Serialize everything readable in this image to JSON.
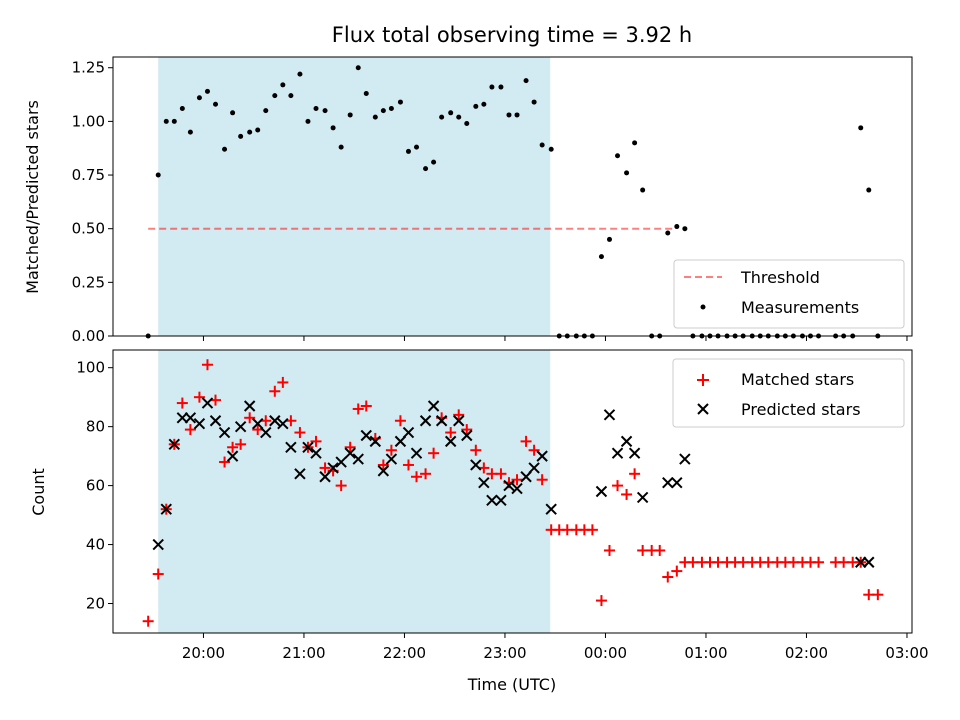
{
  "chart_data": [
    {
      "type": "scatter",
      "title": "Flux total observing time = 3.92 h",
      "xlabel": "",
      "ylabel": "Matched/Predicted stars",
      "ylim": [
        0,
        1.3
      ],
      "y_ticks": [
        "0.00",
        "0.25",
        "0.50",
        "0.75",
        "1.00",
        "1.25"
      ],
      "x_ticklabels_shown": false,
      "legend_position": "lower-right",
      "shaded_interval": {
        "start": 19.55,
        "end": 23.45,
        "color": "#add8e6"
      },
      "threshold": {
        "name": "Threshold",
        "value": 0.5,
        "x_range": [
          19.45,
          24.7
        ],
        "color": "#ff0000",
        "style": "dashed"
      },
      "series": [
        {
          "name": "Measurements",
          "marker": "dot",
          "color": "#000000",
          "points": [
            [
              19.45,
              0.0
            ],
            [
              19.55,
              0.75
            ],
            [
              19.63,
              1.0
            ],
            [
              19.71,
              1.0
            ],
            [
              19.79,
              1.06
            ],
            [
              19.87,
              0.95
            ],
            [
              19.96,
              1.11
            ],
            [
              20.04,
              1.14
            ],
            [
              20.12,
              1.08
            ],
            [
              20.21,
              0.87
            ],
            [
              20.29,
              1.04
            ],
            [
              20.37,
              0.93
            ],
            [
              20.46,
              0.95
            ],
            [
              20.54,
              0.96
            ],
            [
              20.62,
              1.05
            ],
            [
              20.71,
              1.12
            ],
            [
              20.79,
              1.17
            ],
            [
              20.87,
              1.12
            ],
            [
              20.96,
              1.22
            ],
            [
              21.04,
              1.0
            ],
            [
              21.12,
              1.06
            ],
            [
              21.21,
              1.05
            ],
            [
              21.29,
              0.97
            ],
            [
              21.37,
              0.88
            ],
            [
              21.46,
              1.03
            ],
            [
              21.54,
              1.25
            ],
            [
              21.62,
              1.13
            ],
            [
              21.71,
              1.02
            ],
            [
              21.79,
              1.05
            ],
            [
              21.87,
              1.06
            ],
            [
              21.96,
              1.09
            ],
            [
              22.04,
              0.86
            ],
            [
              22.12,
              0.88
            ],
            [
              22.21,
              0.78
            ],
            [
              22.29,
              0.81
            ],
            [
              22.37,
              1.02
            ],
            [
              22.46,
              1.04
            ],
            [
              22.54,
              1.02
            ],
            [
              22.62,
              0.99
            ],
            [
              22.71,
              1.07
            ],
            [
              22.79,
              1.08
            ],
            [
              22.87,
              1.16
            ],
            [
              22.96,
              1.16
            ],
            [
              23.04,
              1.03
            ],
            [
              23.12,
              1.03
            ],
            [
              23.21,
              1.19
            ],
            [
              23.29,
              1.09
            ],
            [
              23.37,
              0.89
            ],
            [
              23.46,
              0.87
            ],
            [
              23.54,
              0.0
            ],
            [
              23.62,
              0.0
            ],
            [
              23.71,
              0.0
            ],
            [
              23.79,
              0.0
            ],
            [
              23.87,
              0.0
            ],
            [
              23.96,
              0.37
            ],
            [
              24.04,
              0.45
            ],
            [
              24.12,
              0.84
            ],
            [
              24.21,
              0.76
            ],
            [
              24.29,
              0.9
            ],
            [
              24.37,
              0.68
            ],
            [
              24.46,
              0.0
            ],
            [
              24.54,
              0.0
            ],
            [
              24.62,
              0.48
            ],
            [
              24.71,
              0.51
            ],
            [
              24.79,
              0.5
            ],
            [
              24.87,
              0.0
            ],
            [
              24.96,
              0.0
            ],
            [
              25.04,
              0.0
            ],
            [
              25.12,
              0.0
            ],
            [
              25.21,
              0.0
            ],
            [
              25.29,
              0.0
            ],
            [
              25.37,
              0.0
            ],
            [
              25.46,
              0.0
            ],
            [
              25.54,
              0.0
            ],
            [
              25.62,
              0.0
            ],
            [
              25.71,
              0.0
            ],
            [
              25.79,
              0.0
            ],
            [
              25.87,
              0.0
            ],
            [
              25.96,
              0.0
            ],
            [
              26.04,
              0.0
            ],
            [
              26.12,
              0.0
            ],
            [
              26.29,
              0.0
            ],
            [
              26.37,
              0.0
            ],
            [
              26.46,
              0.0
            ],
            [
              26.54,
              0.97
            ],
            [
              26.62,
              0.68
            ],
            [
              26.71,
              0.0
            ]
          ]
        }
      ]
    },
    {
      "type": "scatter",
      "title": "",
      "xlabel": "Time (UTC)",
      "ylabel": "Count",
      "ylim": [
        10,
        106
      ],
      "xlim": [
        19.1,
        27.05
      ],
      "x_ticks": [
        {
          "value": 20,
          "label": "20:00"
        },
        {
          "value": 21,
          "label": "21:00"
        },
        {
          "value": 22,
          "label": "22:00"
        },
        {
          "value": 23,
          "label": "23:00"
        },
        {
          "value": 24,
          "label": "00:00"
        },
        {
          "value": 25,
          "label": "01:00"
        },
        {
          "value": 26,
          "label": "02:00"
        },
        {
          "value": 27,
          "label": "03:00"
        }
      ],
      "y_ticks": [
        "20",
        "40",
        "60",
        "80",
        "100"
      ],
      "legend_position": "upper-right",
      "shaded_interval": {
        "start": 19.55,
        "end": 23.45,
        "color": "#add8e6"
      },
      "series": [
        {
          "name": "Matched stars",
          "marker": "plus",
          "color": "#ff0000",
          "points": [
            [
              19.45,
              14
            ],
            [
              19.55,
              30
            ],
            [
              19.63,
              52
            ],
            [
              19.71,
              74
            ],
            [
              19.79,
              88
            ],
            [
              19.87,
              79
            ],
            [
              19.96,
              90
            ],
            [
              20.04,
              101
            ],
            [
              20.12,
              89
            ],
            [
              20.21,
              68
            ],
            [
              20.29,
              73
            ],
            [
              20.37,
              74
            ],
            [
              20.46,
              83
            ],
            [
              20.54,
              79
            ],
            [
              20.62,
              82
            ],
            [
              20.71,
              92
            ],
            [
              20.79,
              95
            ],
            [
              20.87,
              82
            ],
            [
              20.96,
              78
            ],
            [
              21.04,
              73
            ],
            [
              21.12,
              75
            ],
            [
              21.21,
              66
            ],
            [
              21.29,
              65
            ],
            [
              21.37,
              60
            ],
            [
              21.46,
              73
            ],
            [
              21.54,
              86
            ],
            [
              21.62,
              87
            ],
            [
              21.71,
              76
            ],
            [
              21.79,
              67
            ],
            [
              21.87,
              72
            ],
            [
              21.96,
              82
            ],
            [
              22.04,
              67
            ],
            [
              22.12,
              63
            ],
            [
              22.21,
              64
            ],
            [
              22.29,
              71
            ],
            [
              22.37,
              83
            ],
            [
              22.46,
              78
            ],
            [
              22.54,
              84
            ],
            [
              22.62,
              79
            ],
            [
              22.71,
              72
            ],
            [
              22.79,
              66
            ],
            [
              22.87,
              64
            ],
            [
              22.96,
              64
            ],
            [
              23.04,
              61
            ],
            [
              23.12,
              62
            ],
            [
              23.21,
              75
            ],
            [
              23.29,
              72
            ],
            [
              23.37,
              62
            ],
            [
              23.46,
              45
            ],
            [
              23.54,
              45
            ],
            [
              23.62,
              45
            ],
            [
              23.71,
              45
            ],
            [
              23.79,
              45
            ],
            [
              23.87,
              45
            ],
            [
              23.96,
              21
            ],
            [
              24.04,
              38
            ],
            [
              24.12,
              60
            ],
            [
              24.21,
              57
            ],
            [
              24.29,
              64
            ],
            [
              24.37,
              38
            ],
            [
              24.46,
              38
            ],
            [
              24.54,
              38
            ],
            [
              24.62,
              29
            ],
            [
              24.71,
              31
            ],
            [
              24.79,
              34
            ],
            [
              24.87,
              34
            ],
            [
              24.96,
              34
            ],
            [
              25.04,
              34
            ],
            [
              25.12,
              34
            ],
            [
              25.21,
              34
            ],
            [
              25.29,
              34
            ],
            [
              25.37,
              34
            ],
            [
              25.46,
              34
            ],
            [
              25.54,
              34
            ],
            [
              25.62,
              34
            ],
            [
              25.71,
              34
            ],
            [
              25.79,
              34
            ],
            [
              25.87,
              34
            ],
            [
              25.96,
              34
            ],
            [
              26.04,
              34
            ],
            [
              26.12,
              34
            ],
            [
              26.29,
              34
            ],
            [
              26.37,
              34
            ],
            [
              26.46,
              34
            ],
            [
              26.54,
              34
            ],
            [
              26.62,
              23
            ],
            [
              26.71,
              23
            ]
          ]
        },
        {
          "name": "Predicted stars",
          "marker": "x",
          "color": "#000000",
          "points": [
            [
              19.55,
              40
            ],
            [
              19.63,
              52
            ],
            [
              19.71,
              74
            ],
            [
              19.79,
              83
            ],
            [
              19.87,
              83
            ],
            [
              19.96,
              81
            ],
            [
              20.04,
              88
            ],
            [
              20.12,
              82
            ],
            [
              20.21,
              78
            ],
            [
              20.29,
              70
            ],
            [
              20.37,
              80
            ],
            [
              20.46,
              87
            ],
            [
              20.54,
              81
            ],
            [
              20.62,
              78
            ],
            [
              20.71,
              82
            ],
            [
              20.79,
              81
            ],
            [
              20.87,
              73
            ],
            [
              20.96,
              64
            ],
            [
              21.04,
              73
            ],
            [
              21.12,
              71
            ],
            [
              21.21,
              63
            ],
            [
              21.29,
              66
            ],
            [
              21.37,
              68
            ],
            [
              21.46,
              71
            ],
            [
              21.54,
              69
            ],
            [
              21.62,
              77
            ],
            [
              21.71,
              75
            ],
            [
              21.79,
              65
            ],
            [
              21.87,
              69
            ],
            [
              21.96,
              75
            ],
            [
              22.04,
              78
            ],
            [
              22.12,
              71
            ],
            [
              22.21,
              82
            ],
            [
              22.29,
              87
            ],
            [
              22.37,
              82
            ],
            [
              22.46,
              75
            ],
            [
              22.54,
              82
            ],
            [
              22.62,
              77
            ],
            [
              22.71,
              67
            ],
            [
              22.79,
              61
            ],
            [
              22.87,
              55
            ],
            [
              22.96,
              55
            ],
            [
              23.04,
              60
            ],
            [
              23.12,
              59
            ],
            [
              23.21,
              63
            ],
            [
              23.29,
              66
            ],
            [
              23.37,
              70
            ],
            [
              23.46,
              52
            ],
            [
              23.96,
              58
            ],
            [
              24.04,
              84
            ],
            [
              24.12,
              71
            ],
            [
              24.21,
              75
            ],
            [
              24.29,
              71
            ],
            [
              24.37,
              56
            ],
            [
              24.62,
              61
            ],
            [
              24.71,
              61
            ],
            [
              24.79,
              69
            ],
            [
              26.54,
              34
            ],
            [
              26.62,
              34
            ]
          ]
        }
      ]
    }
  ]
}
